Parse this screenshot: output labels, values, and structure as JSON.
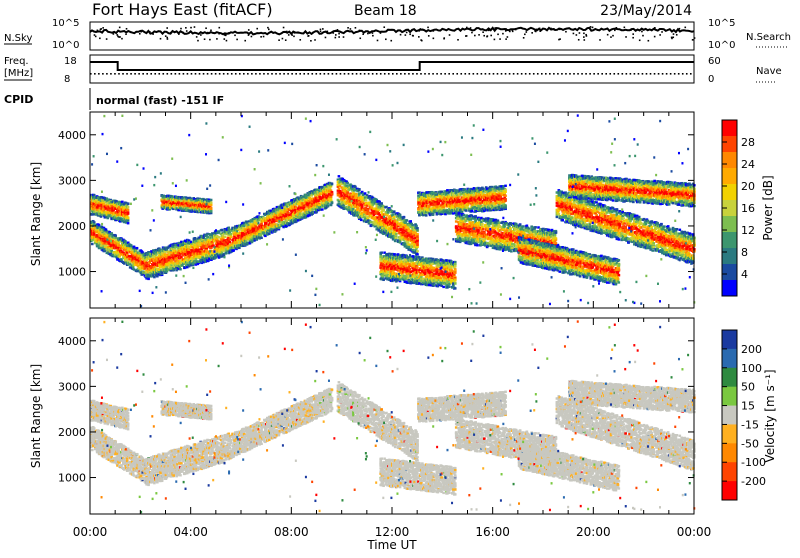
{
  "header": {
    "title": "Fort Hays East (fitACF)",
    "beam": "Beam 18",
    "date": "23/May/2014"
  },
  "top_panel": {
    "nsky_label": "N.Sky",
    "nsky_ticks": [
      "10^5",
      "10^0"
    ],
    "nsearch_label": "N.Search",
    "nsearch_ticks": [
      "10^5",
      "10^0"
    ],
    "freq_label_1": "Freq.",
    "freq_label_2": "[MHz]",
    "freq_ticks": [
      "18",
      "8"
    ],
    "nave_label": "Nave",
    "nave_ticks": [
      "60",
      "0"
    ],
    "cpid_label": "CPID",
    "cpid_value": "normal (fast) -151 IF"
  },
  "chart_data": [
    {
      "type": "heatmap",
      "name": "power",
      "ylabel": "Slant Range [km]",
      "yticks": [
        "1000",
        "2000",
        "3000",
        "4000"
      ],
      "ylim": [
        200,
        4500
      ],
      "xlim": [
        0,
        24
      ],
      "colorbar": {
        "label": "Power [dB]",
        "ticks": [
          "28",
          "24",
          "20",
          "16",
          "12",
          "8",
          "4"
        ],
        "colors": [
          "#ff0000",
          "#ff4400",
          "#ff8800",
          "#ffaa00",
          "#f2d200",
          "#c8d23c",
          "#7dbe50",
          "#3c966e",
          "#2a7a80",
          "#1a4aa0",
          "#0000ff"
        ]
      }
    },
    {
      "type": "heatmap",
      "name": "velocity",
      "ylabel": "Slant Range [km]",
      "yticks": [
        "1000",
        "2000",
        "3000",
        "4000"
      ],
      "ylim": [
        200,
        4500
      ],
      "xlim": [
        0,
        24
      ],
      "xlabel": "Time UT",
      "xticks": [
        "00:00",
        "04:00",
        "08:00",
        "12:00",
        "16:00",
        "20:00",
        "00:00"
      ],
      "colorbar": {
        "label": "Velocity [m s⁻¹]",
        "ticks": [
          "200",
          "100",
          "50",
          "15",
          "-15",
          "-50",
          "-100",
          "-200"
        ],
        "colors": [
          "#1a3aa0",
          "#2a6ab0",
          "#2e8a40",
          "#7ac840",
          "#c8c8c0",
          "#ffb020",
          "#ff8800",
          "#ff4400",
          "#ff0000"
        ]
      }
    }
  ]
}
